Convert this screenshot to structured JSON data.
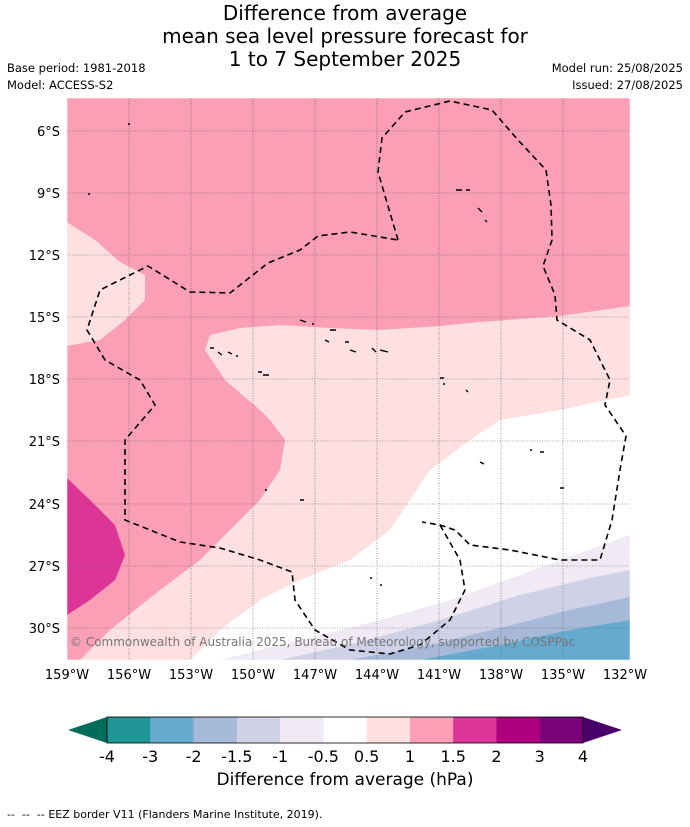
{
  "title": {
    "line1": "Difference from average",
    "line2": "mean sea level pressure forecast for",
    "line3": "1 to 7 September 2025"
  },
  "meta": {
    "base_period": "Base period: 1981-2018",
    "model": "Model: ACCESS-S2",
    "model_run": "Model run: 25/08/2025",
    "issued": "Issued: 27/08/2025"
  },
  "map": {
    "lat_labels": [
      "6°S",
      "9°S",
      "12°S",
      "15°S",
      "18°S",
      "21°S",
      "24°S",
      "27°S",
      "30°S"
    ],
    "lon_labels": [
      "159°W",
      "156°W",
      "153°W",
      "150°W",
      "147°W",
      "144°W",
      "141°W",
      "138°W",
      "135°W",
      "132°W"
    ],
    "copyright": "© Commonwealth of Australia 2025, Bureau of Meteorology, supported by COSPPac"
  },
  "colorbar": {
    "ticks": [
      "-4",
      "-3",
      "-2",
      "-1.5",
      "-1",
      "-0.5",
      "0.5",
      "1",
      "1.5",
      "2",
      "3",
      "4"
    ],
    "colors": [
      "#1f9596",
      "#67aacf",
      "#a7b9d9",
      "#d0d1e6",
      "#f0eaf4",
      "#ffffff",
      "#fde0df",
      "#fa9fb5",
      "#dd3497",
      "#ae017e",
      "#7a0177"
    ],
    "under_color": "#016c59",
    "over_color": "#49006a",
    "label": "Difference from average (hPa)"
  },
  "legend": {
    "eez_text": "EEZ border V11 (Flanders Marine Institute, 2019)."
  }
}
